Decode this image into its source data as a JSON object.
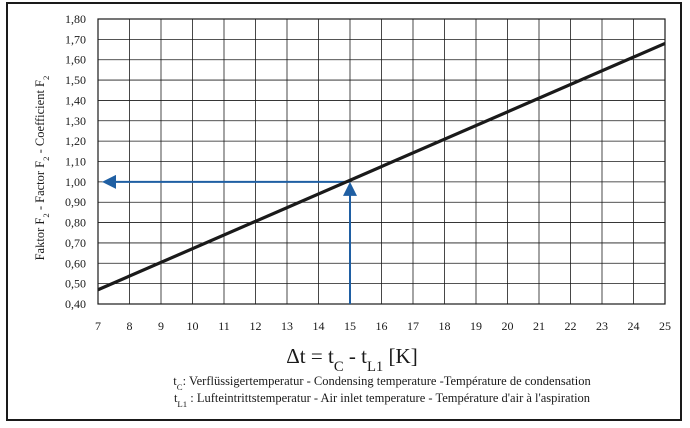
{
  "chart_data": {
    "type": "line",
    "title": "",
    "ylabel": {
      "parts": [
        {
          "t": "Faktor F"
        },
        {
          "t": "2",
          "sub": true
        },
        {
          "t": " - Factor F"
        },
        {
          "t": "2",
          "sub": true
        },
        {
          "t": " - Coefficient F"
        },
        {
          "t": "2",
          "sub": true
        }
      ]
    },
    "xlabel": {
      "parts": [
        {
          "t": "Δt = t"
        },
        {
          "t": "C",
          "sub": true
        },
        {
          "t": " - t"
        },
        {
          "t": "L1",
          "sub": true
        },
        {
          "t": " [K]"
        }
      ]
    },
    "xlim": [
      7,
      25
    ],
    "ylim": [
      0.4,
      1.8
    ],
    "x_ticks": [
      "7",
      "8",
      "9",
      "10",
      "11",
      "12",
      "13",
      "14",
      "15",
      "16",
      "17",
      "18",
      "19",
      "20",
      "21",
      "22",
      "23",
      "24",
      "25"
    ],
    "y_ticks": [
      "0,40",
      "0,50",
      "0,60",
      "0,70",
      "0,80",
      "0,90",
      "1,00",
      "1,10",
      "1,20",
      "1,30",
      "1,40",
      "1,50",
      "1,60",
      "1,70",
      "1,80"
    ],
    "grid": true,
    "series": [
      {
        "x": [
          7,
          25
        ],
        "y": [
          0.47,
          1.68
        ],
        "color": "#1a1a1a"
      }
    ],
    "annotations": [
      {
        "kind": "arrow-up",
        "x": 15,
        "from_y": 0.4,
        "to_y": 1.0,
        "color": "#1f5fa3"
      },
      {
        "kind": "arrow-left",
        "y": 1.0,
        "from_x": 15,
        "to_x": 7,
        "color": "#1f5fa3"
      }
    ]
  },
  "legend_lines": [
    {
      "parts": [
        {
          "t": "t"
        },
        {
          "t": "C",
          "sub": true
        },
        {
          "t": ": Verflüssigertemperatur - Condensing temperature -Température de condensation"
        }
      ]
    },
    {
      "parts": [
        {
          "t": "t"
        },
        {
          "t": "L1",
          "sub": true
        },
        {
          "t": " : Lufteintrittstemperatur - Air inlet temperature - Température d'air à l'aspiration"
        }
      ]
    }
  ]
}
